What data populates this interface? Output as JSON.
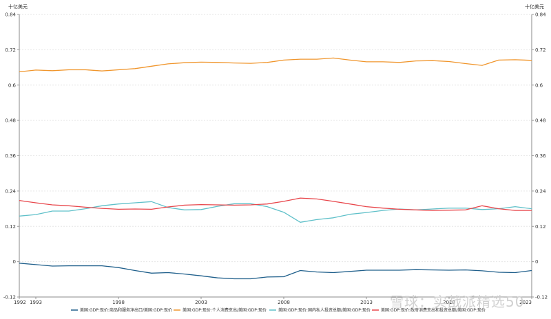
{
  "chart_data": {
    "type": "line",
    "title": "",
    "left_unit": "十亿美元",
    "right_unit": "十亿美元",
    "ylim": [
      -0.12,
      0.84
    ],
    "y_ticks": [
      -0.12,
      0,
      0.12,
      0.24,
      0.36,
      0.48,
      0.6,
      0.72,
      0.84
    ],
    "y_tick_labels": [
      "-0.12",
      "0",
      "0.12",
      "0.24",
      "0.36",
      "0.48",
      "0.6",
      "0.72",
      "0.84"
    ],
    "xlim": [
      1992,
      2023
    ],
    "x_ticks": [
      1992,
      1993,
      1998,
      2003,
      2008,
      2013,
      2018,
      2023
    ],
    "x_tick_labels": [
      "1992",
      "1993",
      "1998",
      "2003",
      "2008",
      "2013",
      "2018",
      "2023"
    ],
    "grid": true,
    "legend_position": "bottom",
    "x": [
      1992,
      1993,
      1994,
      1995,
      1996,
      1997,
      1998,
      1999,
      2000,
      2001,
      2002,
      2003,
      2004,
      2005,
      2006,
      2007,
      2008,
      2009,
      2010,
      2011,
      2012,
      2013,
      2014,
      2015,
      2016,
      2017,
      2018,
      2019,
      2020,
      2021,
      2022,
      2023
    ],
    "series": [
      {
        "name": "美国:GDP:现价:商品和服务净出口/美国:GDP:现价",
        "color": "#1f5f8b",
        "values": [
          -0.005,
          -0.01,
          -0.015,
          -0.014,
          -0.014,
          -0.014,
          -0.02,
          -0.03,
          -0.039,
          -0.037,
          -0.042,
          -0.048,
          -0.055,
          -0.058,
          -0.058,
          -0.052,
          -0.051,
          -0.03,
          -0.035,
          -0.037,
          -0.033,
          -0.029,
          -0.029,
          -0.029,
          -0.027,
          -0.028,
          -0.029,
          -0.028,
          -0.031,
          -0.036,
          -0.037,
          -0.03
        ]
      },
      {
        "name": "美国:GDP:现价:个人消费支出/美国:GDP:现价",
        "color": "#f0952b",
        "values": [
          0.645,
          0.651,
          0.649,
          0.652,
          0.652,
          0.648,
          0.652,
          0.656,
          0.664,
          0.672,
          0.676,
          0.678,
          0.677,
          0.675,
          0.674,
          0.677,
          0.685,
          0.688,
          0.688,
          0.692,
          0.685,
          0.679,
          0.679,
          0.677,
          0.682,
          0.683,
          0.68,
          0.673,
          0.667,
          0.685,
          0.686,
          0.684
        ]
      },
      {
        "name": "美国:GDP:现价:国内私人投资总额/美国:GDP:现价",
        "color": "#5fc0c9",
        "values": [
          0.155,
          0.16,
          0.172,
          0.172,
          0.18,
          0.19,
          0.196,
          0.2,
          0.204,
          0.184,
          0.176,
          0.177,
          0.188,
          0.197,
          0.197,
          0.187,
          0.168,
          0.134,
          0.143,
          0.149,
          0.161,
          0.167,
          0.174,
          0.179,
          0.176,
          0.179,
          0.182,
          0.182,
          0.177,
          0.18,
          0.187,
          0.18
        ]
      },
      {
        "name": "美国:GDP:现价:政府消费支出和投资总额/美国:GDP:现价",
        "color": "#e8464b",
        "values": [
          0.208,
          0.2,
          0.193,
          0.19,
          0.185,
          0.181,
          0.178,
          0.179,
          0.178,
          0.186,
          0.192,
          0.194,
          0.193,
          0.192,
          0.193,
          0.196,
          0.205,
          0.216,
          0.213,
          0.205,
          0.196,
          0.187,
          0.182,
          0.178,
          0.176,
          0.174,
          0.175,
          0.176,
          0.19,
          0.18,
          0.174,
          0.174
        ]
      }
    ]
  },
  "watermark": {
    "text": "雪球：实战派精选50"
  }
}
